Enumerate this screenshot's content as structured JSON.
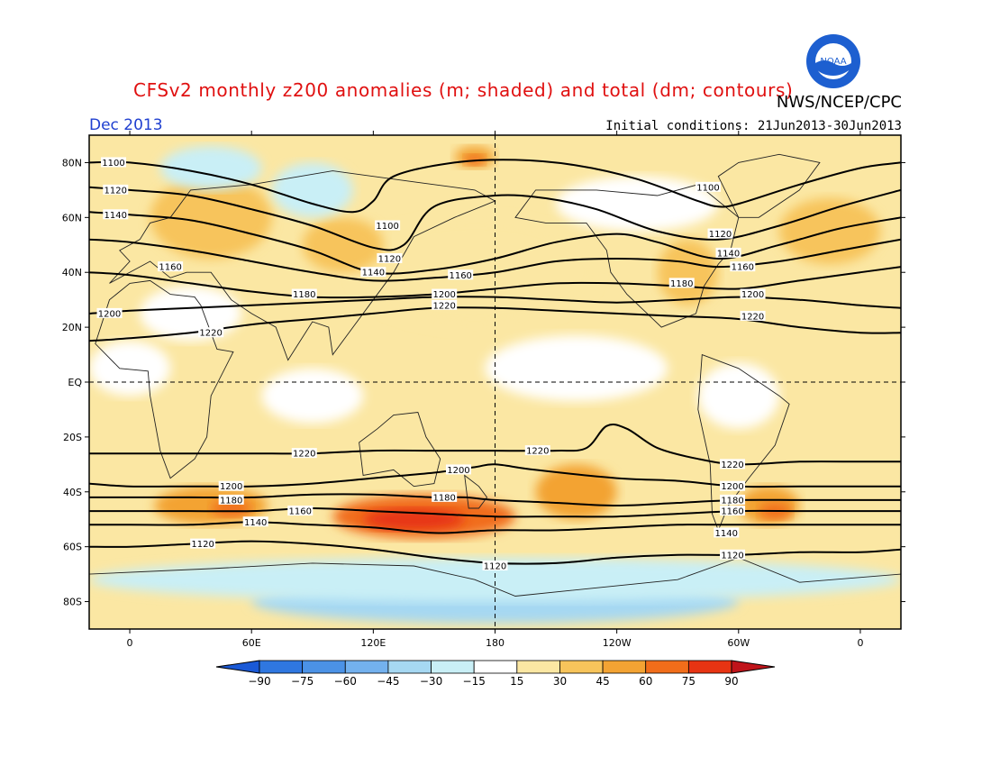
{
  "header": {
    "title": "CFSv2 monthly z200 anomalies (m; shaded) and total (dm; contours)",
    "agency": "NWS/NCEP/CPC",
    "date": "Dec 2013",
    "initial_conditions": "Initial conditions: 21Jun2013-30Jun2013",
    "logo_text": "NOAA"
  },
  "map": {
    "projection": "cylindrical equidistant",
    "lon_range": [
      -20,
      380
    ],
    "lat_range": [
      -90,
      90
    ],
    "lat_ticks": [
      {
        "lat": 80,
        "label": "80N"
      },
      {
        "lat": 60,
        "label": "60N"
      },
      {
        "lat": 40,
        "label": "40N"
      },
      {
        "lat": 20,
        "label": "20N"
      },
      {
        "lat": 0,
        "label": "EQ"
      },
      {
        "lat": -20,
        "label": "20S"
      },
      {
        "lat": -40,
        "label": "40S"
      },
      {
        "lat": -60,
        "label": "60S"
      },
      {
        "lat": -80,
        "label": "80S"
      }
    ],
    "lon_ticks": [
      {
        "lon": 0,
        "label": "0"
      },
      {
        "lon": 60,
        "label": "60E"
      },
      {
        "lon": 120,
        "label": "120E"
      },
      {
        "lon": 180,
        "label": "180"
      },
      {
        "lon": 240,
        "label": "120W"
      },
      {
        "lon": 300,
        "label": "60W"
      },
      {
        "lon": 360,
        "label": "0"
      }
    ],
    "contours": [
      {
        "value": 1100,
        "label": "1100",
        "points": [
          [
            -20,
            80
          ],
          [
            0,
            80
          ],
          [
            30,
            77
          ],
          [
            60,
            72
          ],
          [
            90,
            65
          ],
          [
            110,
            62
          ],
          [
            120,
            66
          ],
          [
            130,
            75
          ],
          [
            160,
            80
          ],
          [
            190,
            81
          ],
          [
            220,
            79
          ],
          [
            250,
            74
          ],
          [
            280,
            66
          ],
          [
            290,
            64
          ],
          [
            300,
            65
          ],
          [
            330,
            72
          ],
          [
            360,
            78
          ],
          [
            380,
            80
          ]
        ],
        "labels_at": [
          [
            -8,
            80
          ],
          [
            127,
            57
          ],
          [
            285,
            71
          ]
        ]
      },
      {
        "value": 1120,
        "label": "1120",
        "points": [
          [
            -20,
            71
          ],
          [
            0,
            70
          ],
          [
            30,
            68
          ],
          [
            60,
            63
          ],
          [
            90,
            57
          ],
          [
            120,
            49
          ],
          [
            135,
            50
          ],
          [
            150,
            64
          ],
          [
            180,
            68
          ],
          [
            205,
            67
          ],
          [
            230,
            63
          ],
          [
            260,
            55
          ],
          [
            290,
            52
          ],
          [
            320,
            57
          ],
          [
            350,
            64
          ],
          [
            380,
            70
          ]
        ],
        "labels_at": [
          [
            -7,
            70
          ],
          [
            128,
            45
          ],
          [
            291,
            54
          ]
        ]
      },
      {
        "value": 1140,
        "label": "1140",
        "points": [
          [
            -20,
            62
          ],
          [
            0,
            61
          ],
          [
            30,
            59
          ],
          [
            60,
            54
          ],
          [
            90,
            48
          ],
          [
            120,
            40
          ],
          [
            150,
            41
          ],
          [
            180,
            45
          ],
          [
            210,
            51
          ],
          [
            240,
            54
          ],
          [
            260,
            51
          ],
          [
            290,
            45
          ],
          [
            320,
            50
          ],
          [
            350,
            56
          ],
          [
            380,
            60
          ]
        ],
        "labels_at": [
          [
            -7,
            61
          ],
          [
            120,
            40
          ],
          [
            295,
            47
          ]
        ]
      },
      {
        "value": 1160,
        "label": "1160",
        "points": [
          [
            -20,
            52
          ],
          [
            0,
            51
          ],
          [
            30,
            48
          ],
          [
            60,
            44
          ],
          [
            90,
            40
          ],
          [
            120,
            37
          ],
          [
            150,
            38
          ],
          [
            180,
            40
          ],
          [
            210,
            44
          ],
          [
            240,
            45
          ],
          [
            270,
            44
          ],
          [
            290,
            42
          ],
          [
            320,
            44
          ],
          [
            350,
            48
          ],
          [
            380,
            52
          ]
        ],
        "labels_at": [
          [
            20,
            42
          ],
          [
            163,
            39
          ],
          [
            302,
            42
          ]
        ]
      },
      {
        "value": 1180,
        "label": "1180",
        "points": [
          [
            -20,
            40
          ],
          [
            0,
            39
          ],
          [
            30,
            36
          ],
          [
            60,
            33
          ],
          [
            90,
            31
          ],
          [
            120,
            31
          ],
          [
            150,
            32
          ],
          [
            180,
            34
          ],
          [
            210,
            36
          ],
          [
            240,
            36
          ],
          [
            270,
            35
          ],
          [
            300,
            34
          ],
          [
            330,
            37
          ],
          [
            360,
            40
          ],
          [
            380,
            42
          ]
        ],
        "labels_at": [
          [
            86,
            32
          ],
          [
            272,
            36
          ]
        ]
      },
      {
        "value": 1200,
        "label": "1200",
        "points": [
          [
            -20,
            25
          ],
          [
            0,
            26
          ],
          [
            30,
            27
          ],
          [
            60,
            28
          ],
          [
            90,
            29
          ],
          [
            120,
            30
          ],
          [
            150,
            31
          ],
          [
            180,
            31
          ],
          [
            210,
            30
          ],
          [
            240,
            29
          ],
          [
            270,
            30
          ],
          [
            300,
            31
          ],
          [
            330,
            30
          ],
          [
            360,
            28
          ],
          [
            380,
            27
          ]
        ],
        "labels_at": [
          [
            -10,
            25
          ],
          [
            155,
            32
          ],
          [
            307,
            32
          ]
        ]
      },
      {
        "value": 1220,
        "label": "1220",
        "points": [
          [
            -20,
            15
          ],
          [
            0,
            16
          ],
          [
            30,
            18
          ],
          [
            60,
            21
          ],
          [
            90,
            23
          ],
          [
            120,
            25
          ],
          [
            150,
            27
          ],
          [
            180,
            27
          ],
          [
            210,
            26
          ],
          [
            240,
            25
          ],
          [
            270,
            24
          ],
          [
            300,
            23
          ],
          [
            330,
            20
          ],
          [
            360,
            18
          ],
          [
            380,
            18
          ]
        ],
        "labels_at": [
          [
            40,
            18
          ],
          [
            155,
            28
          ],
          [
            307,
            24
          ]
        ]
      },
      {
        "value": 1220,
        "label": "1220",
        "points": [
          [
            -20,
            -26
          ],
          [
            0,
            -26
          ],
          [
            30,
            -26
          ],
          [
            60,
            -26
          ],
          [
            90,
            -26
          ],
          [
            120,
            -25
          ],
          [
            150,
            -25
          ],
          [
            180,
            -25
          ],
          [
            210,
            -25
          ],
          [
            225,
            -24
          ],
          [
            235,
            -16
          ],
          [
            245,
            -17
          ],
          [
            260,
            -24
          ],
          [
            280,
            -28
          ],
          [
            300,
            -30
          ],
          [
            330,
            -29
          ],
          [
            360,
            -29
          ],
          [
            380,
            -29
          ]
        ],
        "labels_at": [
          [
            86,
            -26
          ],
          [
            201,
            -25
          ],
          [
            297,
            -30
          ]
        ]
      },
      {
        "value": 1200,
        "label": "1200",
        "points": [
          [
            -20,
            -37
          ],
          [
            0,
            -38
          ],
          [
            30,
            -38
          ],
          [
            60,
            -38
          ],
          [
            90,
            -37
          ],
          [
            120,
            -35
          ],
          [
            150,
            -33
          ],
          [
            170,
            -31
          ],
          [
            180,
            -30
          ],
          [
            200,
            -32
          ],
          [
            240,
            -35
          ],
          [
            270,
            -36
          ],
          [
            300,
            -38
          ],
          [
            330,
            -38
          ],
          [
            360,
            -38
          ],
          [
            380,
            -38
          ]
        ],
        "labels_at": [
          [
            50,
            -38
          ],
          [
            162,
            -32
          ],
          [
            297,
            -38
          ]
        ]
      },
      {
        "value": 1180,
        "label": "1180",
        "points": [
          [
            -20,
            -42
          ],
          [
            0,
            -42
          ],
          [
            30,
            -42
          ],
          [
            60,
            -42
          ],
          [
            90,
            -41
          ],
          [
            120,
            -41
          ],
          [
            150,
            -42
          ],
          [
            165,
            -42
          ],
          [
            180,
            -43
          ],
          [
            210,
            -44
          ],
          [
            240,
            -45
          ],
          [
            270,
            -44
          ],
          [
            300,
            -43
          ],
          [
            330,
            -43
          ],
          [
            360,
            -43
          ],
          [
            380,
            -43
          ]
        ],
        "labels_at": [
          [
            50,
            -43
          ],
          [
            155,
            -42
          ],
          [
            297,
            -43
          ]
        ]
      },
      {
        "value": 1160,
        "label": "1160",
        "points": [
          [
            -20,
            -47
          ],
          [
            0,
            -47
          ],
          [
            30,
            -47
          ],
          [
            60,
            -47
          ],
          [
            90,
            -46
          ],
          [
            120,
            -47
          ],
          [
            150,
            -48
          ],
          [
            180,
            -49
          ],
          [
            210,
            -49
          ],
          [
            240,
            -49
          ],
          [
            270,
            -48
          ],
          [
            300,
            -47
          ],
          [
            330,
            -47
          ],
          [
            360,
            -47
          ],
          [
            380,
            -47
          ]
        ],
        "labels_at": [
          [
            84,
            -47
          ],
          [
            297,
            -47
          ]
        ]
      },
      {
        "value": 1140,
        "label": "1140",
        "points": [
          [
            -20,
            -52
          ],
          [
            0,
            -52
          ],
          [
            30,
            -52
          ],
          [
            60,
            -51
          ],
          [
            90,
            -52
          ],
          [
            120,
            -53
          ],
          [
            150,
            -55
          ],
          [
            180,
            -54
          ],
          [
            210,
            -54
          ],
          [
            240,
            -53
          ],
          [
            270,
            -52
          ],
          [
            300,
            -52
          ],
          [
            330,
            -52
          ],
          [
            360,
            -52
          ],
          [
            380,
            -52
          ]
        ],
        "labels_at": [
          [
            62,
            -51
          ],
          [
            294,
            -55
          ]
        ]
      },
      {
        "value": 1120,
        "label": "1120",
        "points": [
          [
            -20,
            -60
          ],
          [
            0,
            -60
          ],
          [
            30,
            -59
          ],
          [
            60,
            -58
          ],
          [
            90,
            -59
          ],
          [
            120,
            -61
          ],
          [
            150,
            -64
          ],
          [
            180,
            -66
          ],
          [
            210,
            -66
          ],
          [
            240,
            -64
          ],
          [
            270,
            -63
          ],
          [
            300,
            -63
          ],
          [
            330,
            -62
          ],
          [
            360,
            -62
          ],
          [
            380,
            -61
          ]
        ],
        "labels_at": [
          [
            36,
            -59
          ],
          [
            180,
            -67
          ],
          [
            297,
            -63
          ]
        ]
      }
    ],
    "anomaly_regions": [
      {
        "value": 15,
        "center": [
          170,
          40
        ],
        "radius": [
          60,
          20
        ]
      },
      {
        "value": 30,
        "center": [
          40,
          60
        ],
        "radius": [
          30,
          15
        ]
      },
      {
        "value": 30,
        "center": [
          105,
          50
        ],
        "radius": [
          20,
          10
        ]
      },
      {
        "value": 45,
        "center": [
          170,
          82
        ],
        "radius": [
          10,
          4
        ]
      },
      {
        "value": 30,
        "center": [
          275,
          40
        ],
        "radius": [
          15,
          12
        ]
      },
      {
        "value": 30,
        "center": [
          345,
          55
        ],
        "radius": [
          25,
          12
        ]
      },
      {
        "value": 45,
        "center": [
          40,
          -45
        ],
        "radius": [
          28,
          7
        ]
      },
      {
        "value": 60,
        "center": [
          145,
          -49
        ],
        "radius": [
          45,
          8
        ]
      },
      {
        "value": 45,
        "center": [
          220,
          -40
        ],
        "radius": [
          20,
          10
        ]
      },
      {
        "value": 45,
        "center": [
          315,
          -45
        ],
        "radius": [
          15,
          7
        ]
      },
      {
        "value": -15,
        "center": [
          40,
          78
        ],
        "radius": [
          25,
          8
        ]
      },
      {
        "value": -15,
        "center": [
          90,
          70
        ],
        "radius": [
          20,
          10
        ]
      },
      {
        "value": -30,
        "center": [
          180,
          -80
        ],
        "radius": [
          120,
          8
        ]
      },
      {
        "value": -15,
        "center": [
          180,
          -72
        ],
        "radius": [
          200,
          8
        ]
      }
    ],
    "dashed_lines": [
      {
        "lat": 0
      },
      {
        "lon": 180
      }
    ]
  },
  "colorbar": {
    "labels": [
      "-90",
      "-75",
      "-60",
      "-45",
      "-30",
      "-15",
      "15",
      "30",
      "45",
      "60",
      "75",
      "90"
    ],
    "colors": [
      "#1a59d6",
      "#2f77e0",
      "#4b92e6",
      "#73b1ee",
      "#a6d8f2",
      "#c9eff6",
      "#ffffff",
      "#fbe7a3",
      "#f7c45b",
      "#f3a333",
      "#f16d1a",
      "#e73413",
      "#c0141a"
    ]
  }
}
